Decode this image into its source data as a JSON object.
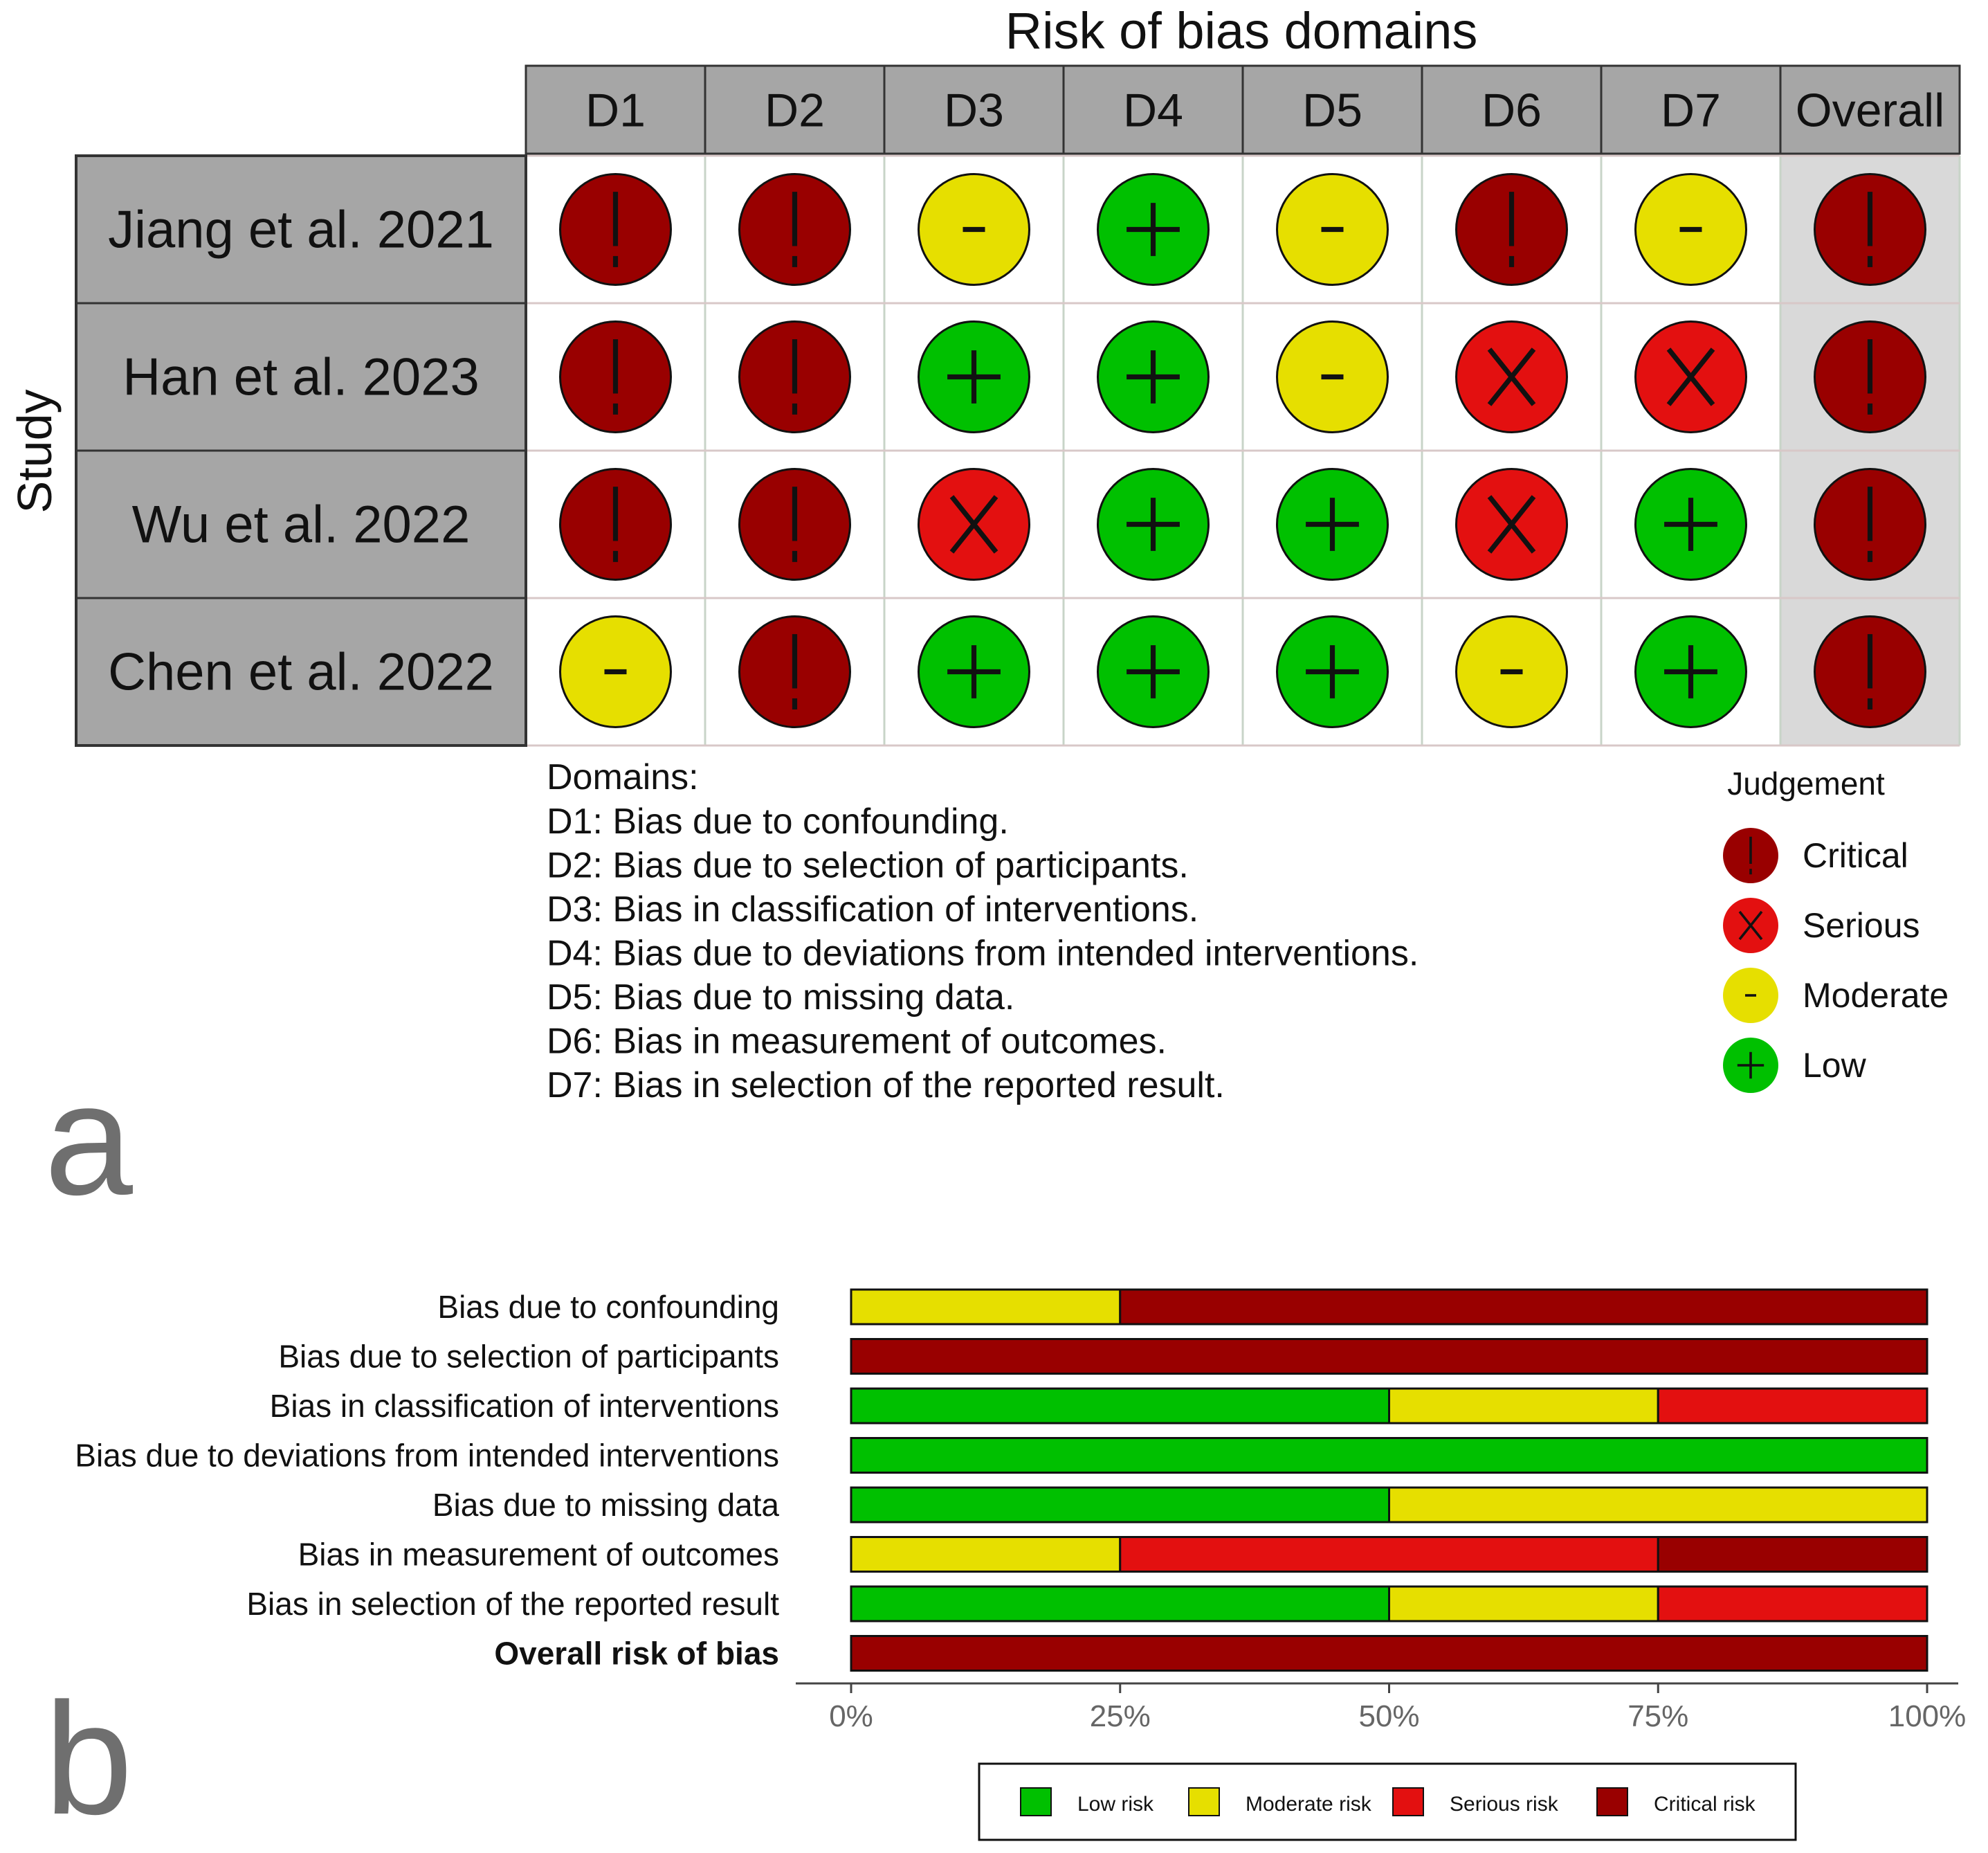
{
  "panel_a": {
    "label": "a",
    "title": "Risk of bias domains",
    "y_axis_label": "Study",
    "columns": [
      "D1",
      "D2",
      "D3",
      "D4",
      "D5",
      "D6",
      "D7",
      "Overall"
    ],
    "rows": [
      {
        "study": "Jiang et al. 2021",
        "judgements": [
          "critical",
          "critical",
          "moderate",
          "low",
          "moderate",
          "critical",
          "moderate",
          "critical"
        ]
      },
      {
        "study": "Han et al. 2023",
        "judgements": [
          "critical",
          "critical",
          "low",
          "low",
          "moderate",
          "serious",
          "serious",
          "critical"
        ]
      },
      {
        "study": "Wu et al. 2022",
        "judgements": [
          "critical",
          "critical",
          "serious",
          "low",
          "low",
          "serious",
          "low",
          "critical"
        ]
      },
      {
        "study": "Chen et al. 2022",
        "judgements": [
          "moderate",
          "critical",
          "low",
          "low",
          "low",
          "moderate",
          "low",
          "critical"
        ]
      }
    ],
    "domains_heading": "Domains:",
    "domains": [
      "D1: Bias due to confounding.",
      "D2: Bias due to selection of participants.",
      "D3: Bias in classification of interventions.",
      "D4: Bias due to deviations from intended interventions.",
      "D5: Bias due to missing data.",
      "D6: Bias in measurement of outcomes.",
      "D7: Bias in selection of the reported result."
    ],
    "legend_title": "Judgement",
    "legend": [
      {
        "key": "critical",
        "label": "Critical"
      },
      {
        "key": "serious",
        "label": "Serious"
      },
      {
        "key": "moderate",
        "label": "Moderate"
      },
      {
        "key": "low",
        "label": "Low"
      }
    ],
    "judgement_styles": {
      "critical": {
        "color": "#990000",
        "symbol": "!"
      },
      "serious": {
        "color": "#e31010",
        "symbol": "X"
      },
      "moderate": {
        "color": "#e6df00",
        "symbol": "-"
      },
      "low": {
        "color": "#00c000",
        "symbol": "+"
      }
    }
  },
  "chart_data": {
    "type": "bar",
    "orientation": "horizontal",
    "stacked": true,
    "panel_label": "b",
    "categories": [
      "Bias due to confounding",
      "Bias due to selection of participants",
      "Bias in classification of interventions",
      "Bias due to deviations from intended interventions",
      "Bias due to missing data",
      "Bias in measurement of outcomes",
      "Bias in selection of the reported result",
      "Overall risk of bias"
    ],
    "bold_categories": [
      "Overall risk of bias"
    ],
    "series": [
      {
        "name": "Low risk",
        "color": "#00c000",
        "values": [
          0,
          0,
          50,
          100,
          50,
          0,
          50,
          0
        ]
      },
      {
        "name": "Moderate risk",
        "color": "#e6df00",
        "values": [
          25,
          0,
          25,
          0,
          50,
          25,
          25,
          0
        ]
      },
      {
        "name": "Serious risk",
        "color": "#e31010",
        "values": [
          0,
          0,
          25,
          0,
          0,
          50,
          25,
          0
        ]
      },
      {
        "name": "Critical risk",
        "color": "#990000",
        "values": [
          75,
          100,
          0,
          0,
          0,
          25,
          0,
          100
        ]
      }
    ],
    "xlim": [
      0,
      100
    ],
    "xticks": [
      "0%",
      "25%",
      "50%",
      "75%",
      "100%"
    ],
    "legend_position": "bottom"
  }
}
